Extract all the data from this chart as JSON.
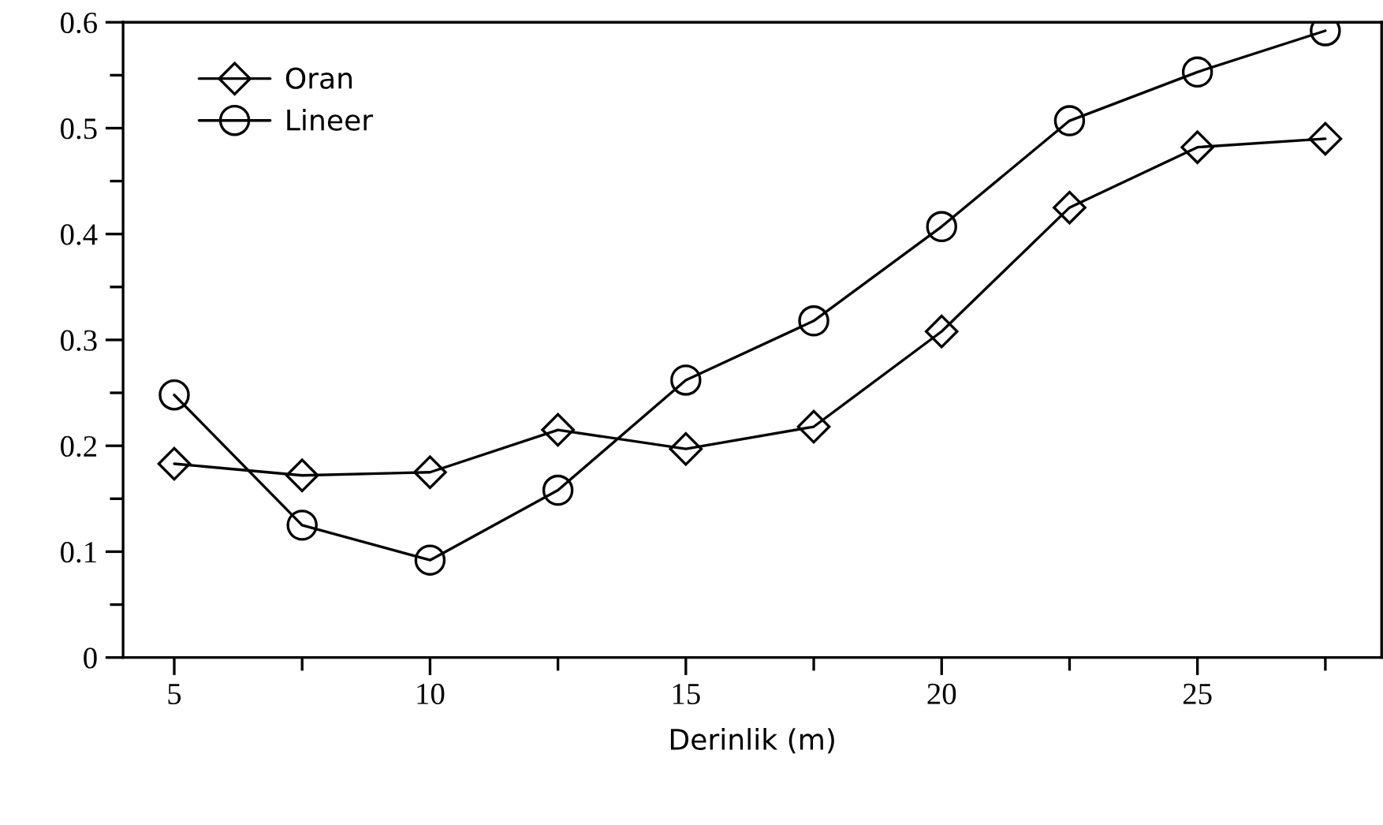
{
  "chart_data": {
    "type": "line",
    "xlabel": "Derinlik (m)",
    "x": [
      5,
      7.5,
      10,
      12.5,
      15,
      17.5,
      20,
      22.5,
      25,
      27.5
    ],
    "series": [
      {
        "name": "Oran",
        "color": "#000000",
        "marker": "diamond",
        "values": [
          0.183,
          0.172,
          0.175,
          0.215,
          0.197,
          0.218,
          0.308,
          0.425,
          0.482,
          0.49
        ]
      },
      {
        "name": "Lineer",
        "color": "#000000",
        "marker": "circle",
        "values": [
          0.248,
          0.125,
          0.092,
          0.158,
          0.262,
          0.318,
          0.407,
          0.507,
          0.553,
          0.592
        ]
      }
    ],
    "xlim": [
      4,
      28.6
    ],
    "ylim": [
      0,
      0.6
    ],
    "xticks": [
      5,
      10,
      15,
      20,
      25
    ],
    "yticks": [
      0,
      0.1,
      0.2,
      0.3,
      0.4,
      0.5,
      0.6
    ],
    "grid": false,
    "legend": "top left",
    "line_style": "solid"
  }
}
